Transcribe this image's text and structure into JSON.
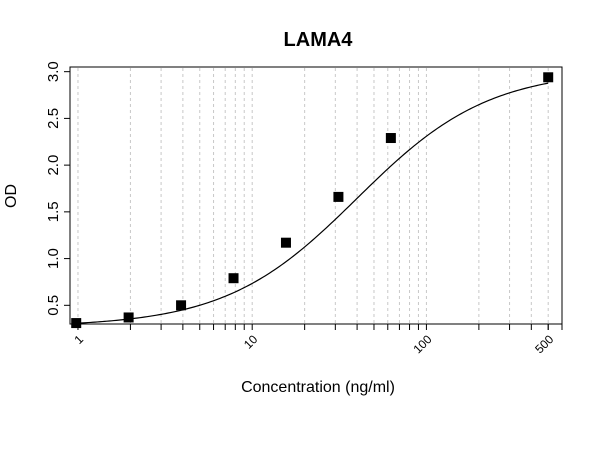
{
  "chart_data": {
    "type": "scatter",
    "title": "LAMA4",
    "xlabel": "Concentration (ng/ml)",
    "ylabel": "OD",
    "xscale": "log",
    "xlim": [
      0.9,
      600
    ],
    "ylim": [
      0.3,
      3.05
    ],
    "grid": "vertical-dashed",
    "y_ticks": [
      0.5,
      1.0,
      1.5,
      2.0,
      2.5,
      3.0
    ],
    "y_tick_labels": [
      "0.5",
      "1.0",
      "1.5",
      "2.0",
      "2.5",
      "3.0"
    ],
    "x_ticks": [
      1,
      10,
      100,
      500
    ],
    "x_tick_labels": [
      "1",
      "10",
      "100",
      "500"
    ],
    "series": [
      {
        "x": [
          0.977,
          1.953,
          3.906,
          7.813,
          15.625,
          31.25,
          62.5,
          500
        ],
        "y": [
          0.31,
          0.37,
          0.5,
          0.79,
          1.17,
          1.66,
          2.29,
          2.94
        ]
      }
    ],
    "fit_curve": {
      "model": "4PL",
      "bottom": 0.27,
      "top": 3.02,
      "ec50": 40,
      "hill": 1.15
    }
  }
}
